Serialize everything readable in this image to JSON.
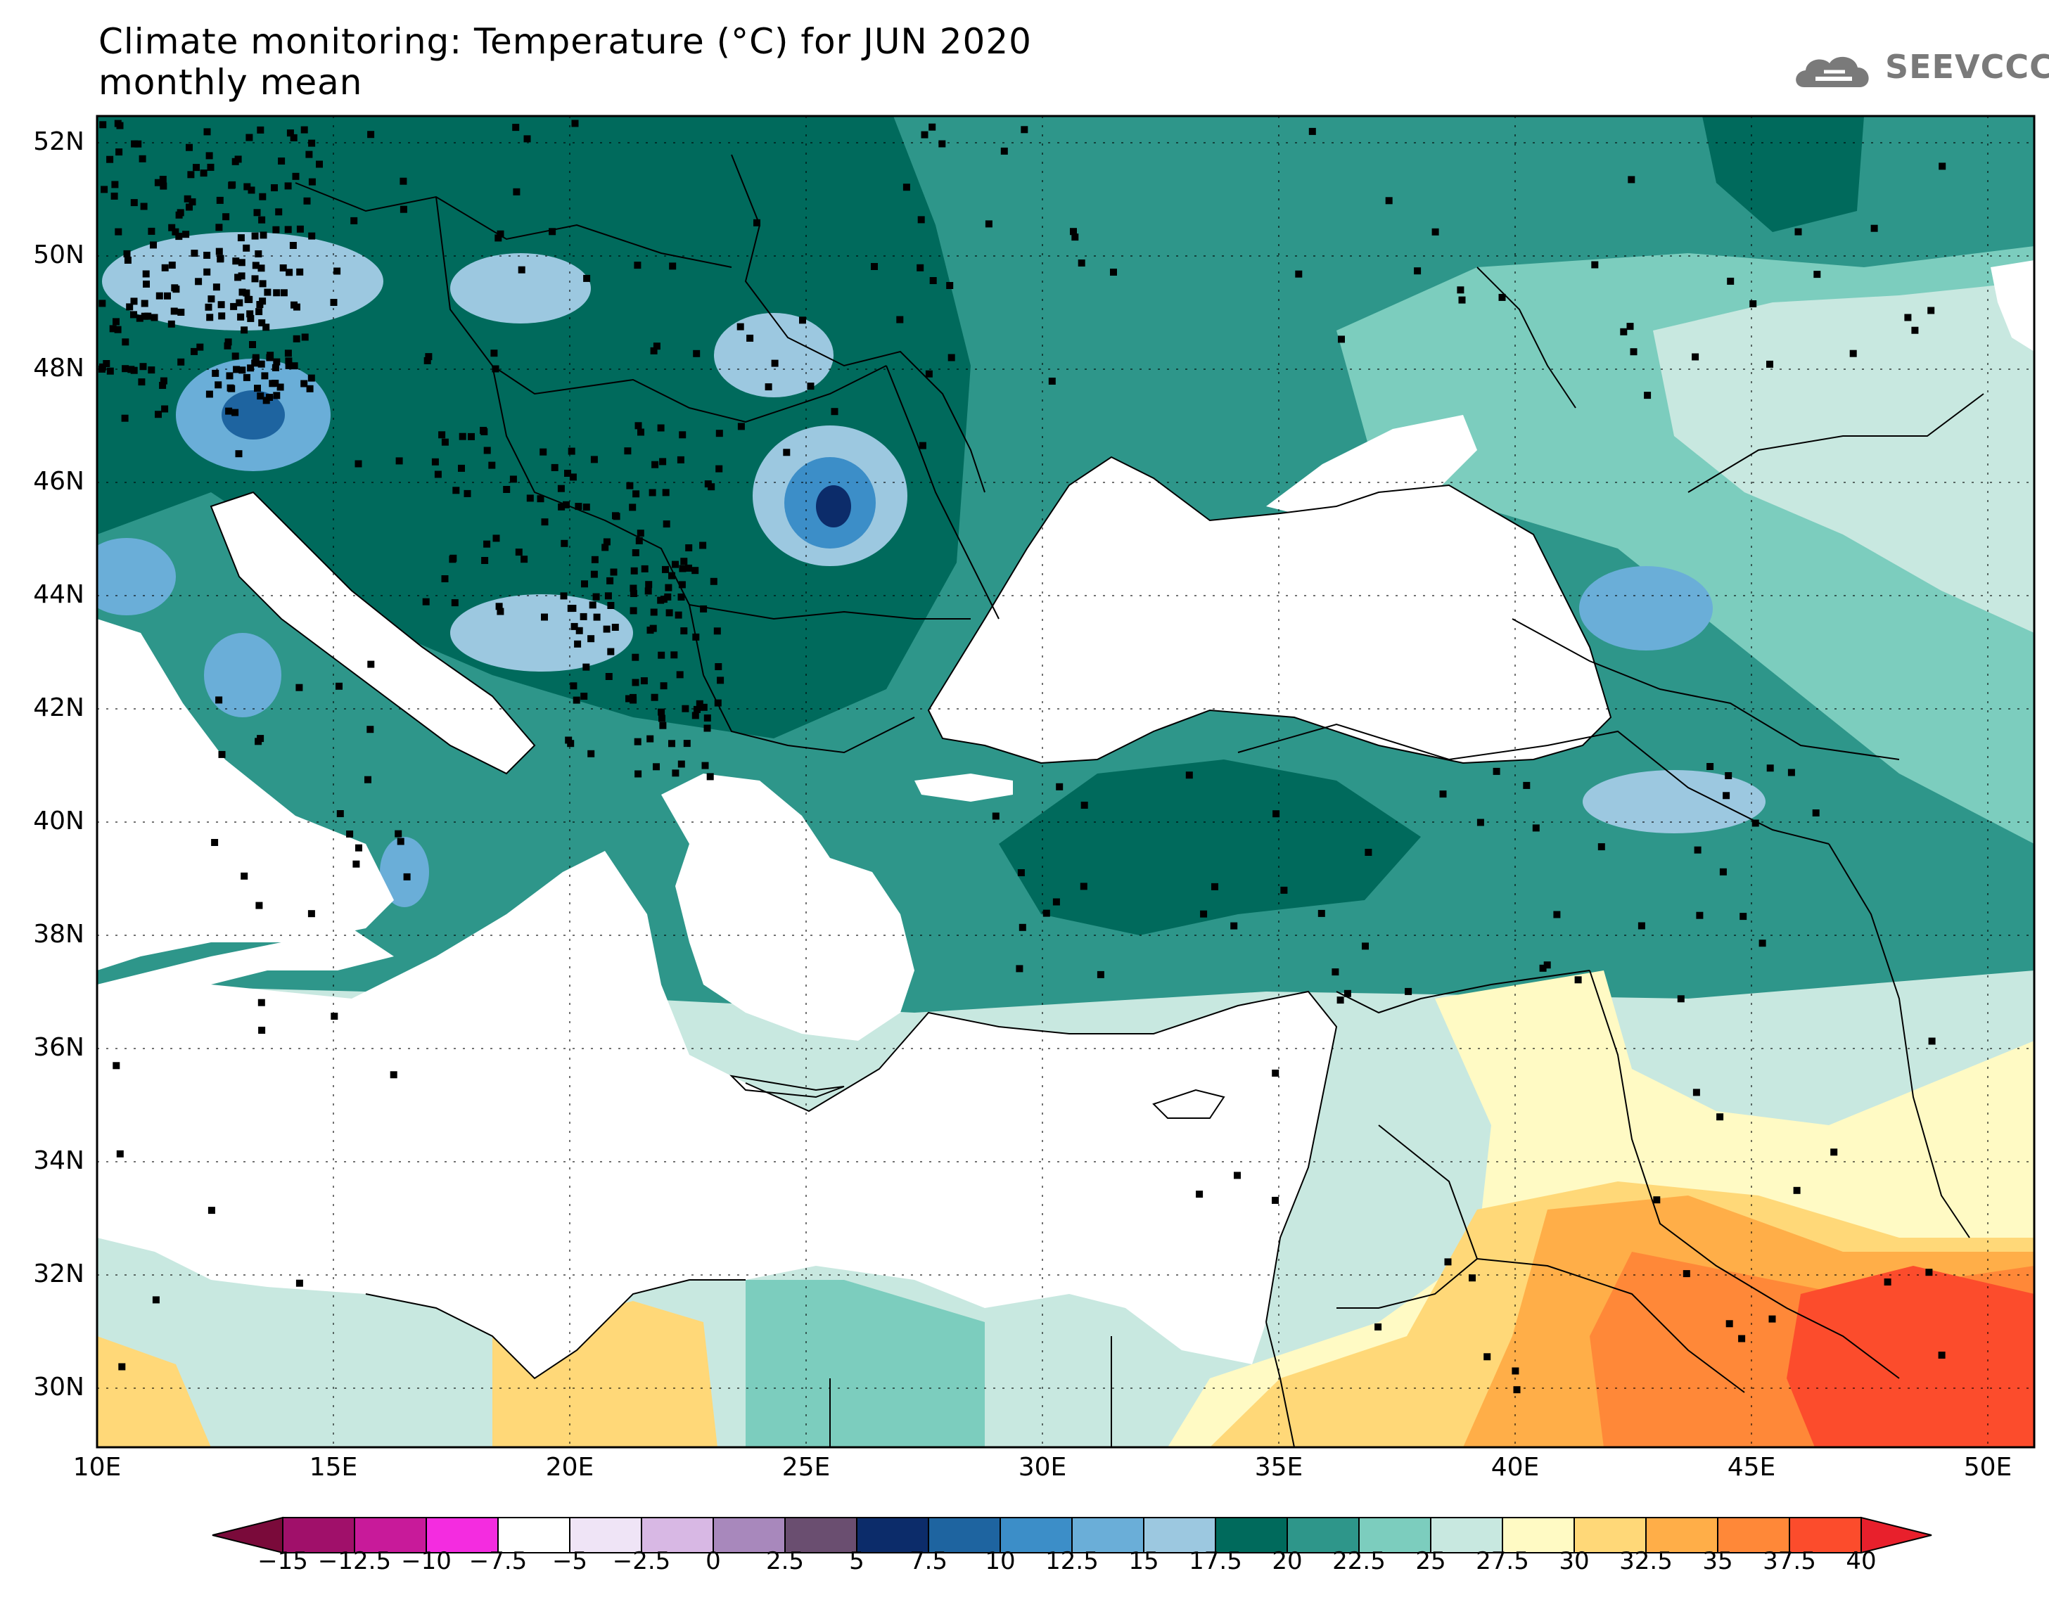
{
  "header": {
    "title_line1": "Climate monitoring: Temperature (°C) for JUN 2020",
    "title_line2": "monthly mean",
    "logo_text": "SEEVCCC"
  },
  "map": {
    "lon_range": [
      10,
      51
    ],
    "lat_range": [
      29,
      52.5
    ],
    "lat_ticks": [
      "52N",
      "50N",
      "48N",
      "46N",
      "44N",
      "42N",
      "40N",
      "38N",
      "36N",
      "34N",
      "32N",
      "30N"
    ],
    "lon_ticks": [
      "10E",
      "15E",
      "20E",
      "25E",
      "30E",
      "35E",
      "40E",
      "45E",
      "50E"
    ],
    "gridlines": true
  },
  "colorbar": {
    "labels": [
      "−15",
      "−12.5",
      "−10",
      "−7.5",
      "−5",
      "−2.5",
      "0",
      "2.5",
      "5",
      "7.5",
      "10",
      "12.5",
      "15",
      "17.5",
      "20",
      "22.5",
      "25",
      "27.5",
      "30",
      "32.5",
      "35",
      "37.5",
      "40"
    ],
    "colors": [
      "#7a0a3a",
      "#a0106a",
      "#c81a9a",
      "#f42ce0",
      "#ffffff",
      "#efe4f6",
      "#d8b8e4",
      "#a888bc",
      "#6a4e70",
      "#0c2c6a",
      "#1e64a0",
      "#3c8ec8",
      "#6aaed8",
      "#9cc8e0",
      "#006a5c",
      "#2e968a",
      "#7ccdbe",
      "#c8e8e0",
      "#fffac4",
      "#ffd878",
      "#ffae48",
      "#ff8838",
      "#fc4c2c",
      "#e8202c"
    ]
  }
}
